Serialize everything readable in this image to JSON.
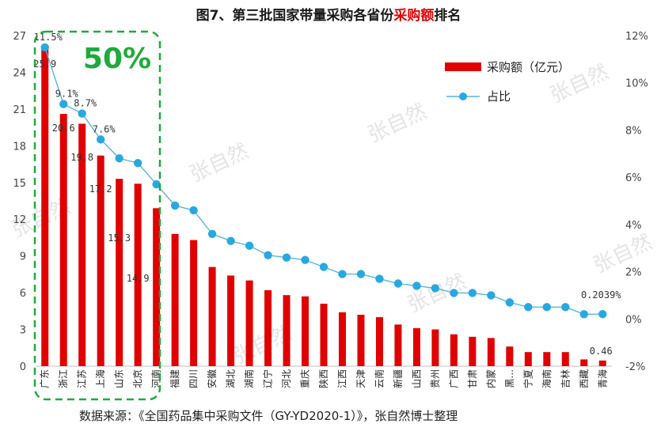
{
  "title": {
    "prefix": "图7、第三批国家带量采购各省份",
    "highlight": "采购额",
    "suffix": "排名"
  },
  "legend": {
    "bar_label": "采购额（亿元）",
    "line_label": "占比"
  },
  "highlight_box_label": "50%",
  "watermark": "张自然",
  "source_note": "数据来源：《全国药品集中采购文件（GY-YD2020-1）》，张自然博士整理",
  "colors": {
    "bar": "#e00000",
    "line": "#56b4e0",
    "marker": "#29a8df",
    "highlight_box": "#1faa3c"
  },
  "chart_data": {
    "type": "bar",
    "categories": [
      "广东",
      "浙江",
      "江苏",
      "上海",
      "山东",
      "北京",
      "河南",
      "福建",
      "四川",
      "安徽",
      "湖北",
      "湖南",
      "辽宁",
      "河北",
      "重庆",
      "陕西",
      "江西",
      "天津",
      "云南",
      "新疆",
      "山西",
      "贵州",
      "广西",
      "甘肃",
      "内蒙",
      "黑...",
      "宁夏",
      "海南",
      "吉林",
      "西藏",
      "青海"
    ],
    "series": [
      {
        "name": "采购额（亿元）",
        "axis": "left",
        "values": [
          25.9,
          20.6,
          19.8,
          17.2,
          15.3,
          14.9,
          12.9,
          10.8,
          10.3,
          8.1,
          7.4,
          7.0,
          6.2,
          5.8,
          5.7,
          5.1,
          4.4,
          4.2,
          4.0,
          3.4,
          3.1,
          3.0,
          2.6,
          2.4,
          2.3,
          1.6,
          1.15,
          1.15,
          1.15,
          0.55,
          0.46
        ]
      },
      {
        "name": "占比",
        "axis": "right",
        "type": "line",
        "values": [
          11.5,
          9.1,
          8.7,
          7.6,
          6.8,
          6.6,
          5.7,
          4.8,
          4.6,
          3.6,
          3.3,
          3.1,
          2.7,
          2.6,
          2.5,
          2.2,
          1.9,
          1.9,
          1.7,
          1.5,
          1.4,
          1.3,
          1.1,
          1.1,
          1.0,
          0.7,
          0.5,
          0.5,
          0.5,
          0.2,
          0.2039
        ]
      }
    ],
    "data_labels": {
      "bar": [
        "25.9",
        "20.6",
        "19.8",
        "17.2",
        "15.3",
        "14.9"
      ],
      "line": [
        "11.5%",
        "9.1%",
        "8.7%",
        "7.6%"
      ],
      "last_bar": "0.46",
      "last_line": "0.2039%"
    },
    "y_left": {
      "min": 0,
      "max": 27,
      "ticks": [
        "0",
        "3",
        "6",
        "9",
        "12",
        "15",
        "18",
        "21",
        "24",
        "27"
      ]
    },
    "y_right": {
      "min": -2,
      "max": 12,
      "ticks": [
        "-2%",
        "0%",
        "2%",
        "4%",
        "6%",
        "8%",
        "10%",
        "12%"
      ]
    },
    "legend_position": "top-right",
    "grid": false
  }
}
